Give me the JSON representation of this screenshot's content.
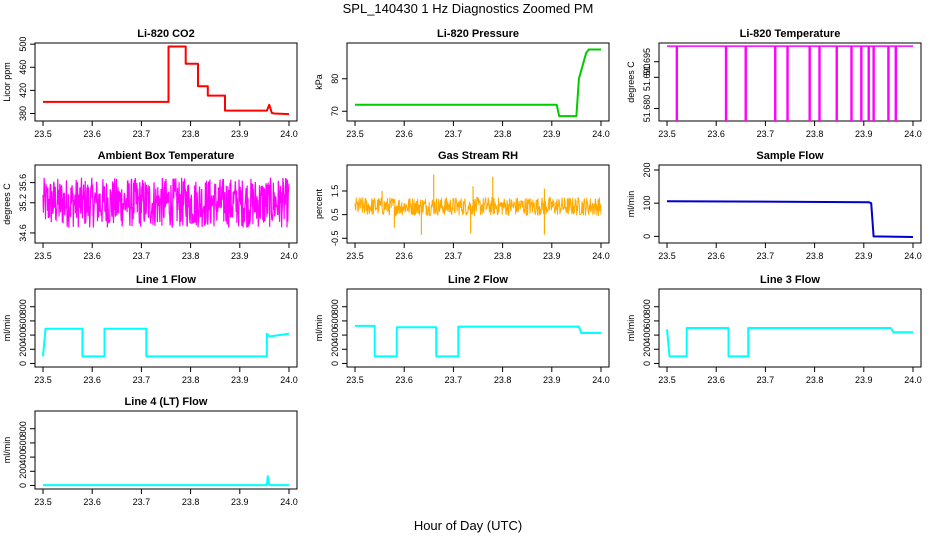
{
  "figure": {
    "title": "SPL_140430  1 Hz Diagnostics Zoomed PM",
    "xlabel": "Hour of Day (UTC)"
  },
  "chart_data": [
    {
      "type": "line",
      "title": "Li-820 CO2",
      "ylabel": "Licor ppm",
      "color": "#ff0000",
      "xlim": [
        23.5,
        24.0
      ],
      "ylim": [
        367,
        502
      ],
      "xticks": [
        "23.5",
        "23.6",
        "23.7",
        "23.8",
        "23.9",
        "24.0"
      ],
      "yticks": [
        "380",
        "420",
        "460",
        "500"
      ],
      "x": [
        23.5,
        23.755,
        23.755,
        23.79,
        23.79,
        23.815,
        23.815,
        23.835,
        23.835,
        23.87,
        23.87,
        23.955,
        23.96,
        23.965,
        23.97,
        24.0
      ],
      "y": [
        400,
        400,
        496,
        496,
        466,
        466,
        427,
        427,
        411,
        411,
        385,
        385,
        395,
        381,
        380,
        379
      ]
    },
    {
      "type": "line",
      "title": "Li-820 Pressure",
      "ylabel": "kPa",
      "color": "#00cc00",
      "xlim": [
        23.5,
        24.0
      ],
      "ylim": [
        67,
        91
      ],
      "xticks": [
        "23.5",
        "23.6",
        "23.7",
        "23.8",
        "23.9",
        "24.0"
      ],
      "yticks": [
        "70",
        "80"
      ],
      "x": [
        23.5,
        23.91,
        23.915,
        23.95,
        23.955,
        23.97,
        23.975,
        24.0
      ],
      "y": [
        72,
        72,
        68.5,
        68.5,
        80,
        88,
        89,
        89
      ]
    },
    {
      "type": "line",
      "title": "Li-820 Temperature",
      "ylabel": "degrees C",
      "color": "#ff00ff",
      "xlim": [
        23.5,
        24.0
      ],
      "ylim": [
        51.676,
        51.701
      ],
      "xticks": [
        "23.5",
        "23.6",
        "23.7",
        "23.8",
        "23.9",
        "24.0"
      ],
      "yticks": [
        "51.680",
        "51.690",
        "51.695"
      ],
      "baseline": 51.7,
      "dips": [
        23.52,
        23.62,
        23.66,
        23.72,
        23.745,
        23.79,
        23.81,
        23.845,
        23.875,
        23.895,
        23.91,
        23.92,
        23.95,
        23.965
      ]
    },
    {
      "type": "line",
      "title": "Ambient Box Temperature",
      "ylabel": "degrees C",
      "color": "#ff00ff",
      "xlim": [
        23.5,
        24.0
      ],
      "ylim": [
        34.4,
        35.95
      ],
      "xticks": [
        "23.5",
        "23.6",
        "23.7",
        "23.8",
        "23.9",
        "24.0"
      ],
      "yticks": [
        "34.6",
        "35.2",
        "35.6"
      ],
      "band": [
        34.7,
        35.7
      ]
    },
    {
      "type": "line",
      "title": "Gas Stream RH",
      "ylabel": "percent",
      "color": "#ffaa00",
      "xlim": [
        23.5,
        24.0
      ],
      "ylim": [
        -0.7,
        2.6
      ],
      "xticks": [
        "23.5",
        "23.6",
        "23.7",
        "23.8",
        "23.9",
        "24.0"
      ],
      "yticks": [
        "-0.5",
        "0.5",
        "1.5"
      ],
      "band": [
        0.45,
        1.25
      ],
      "spikes": [
        [
          23.66,
          2.2
        ],
        [
          23.74,
          1.7
        ],
        [
          23.78,
          2.1
        ],
        [
          23.555,
          1.5
        ],
        [
          23.885,
          1.6
        ],
        [
          23.635,
          -0.35
        ],
        [
          23.735,
          -0.3
        ],
        [
          23.885,
          -0.35
        ],
        [
          23.58,
          -0.05
        ]
      ]
    },
    {
      "type": "line",
      "title": "Sample Flow",
      "ylabel": "ml/min",
      "color": "#0000cc",
      "xlim": [
        23.5,
        24.0
      ],
      "ylim": [
        -20,
        215
      ],
      "xticks": [
        "23.5",
        "23.6",
        "23.7",
        "23.8",
        "23.9",
        "24.0"
      ],
      "yticks": [
        "0",
        "100",
        "200"
      ],
      "x": [
        23.5,
        23.91,
        23.915,
        23.92,
        24.0
      ],
      "y": [
        106,
        103,
        100,
        0,
        -2
      ]
    },
    {
      "type": "line",
      "title": "Line 1 Flow",
      "ylabel": "ml/min",
      "color": "#00ffff",
      "xlim": [
        23.5,
        24.0
      ],
      "ylim": [
        -50,
        1050
      ],
      "xticks": [
        "23.5",
        "23.6",
        "23.7",
        "23.8",
        "23.9",
        "24.0"
      ],
      "yticks": [
        "0",
        "200",
        "400",
        "600",
        "800"
      ],
      "x": [
        23.5,
        23.505,
        23.58,
        23.58,
        23.625,
        23.625,
        23.71,
        23.71,
        23.955,
        23.955,
        23.96,
        24.0
      ],
      "y": [
        100,
        490,
        490,
        100,
        100,
        490,
        490,
        100,
        100,
        420,
        380,
        420
      ]
    },
    {
      "type": "line",
      "title": "Line 2 Flow",
      "ylabel": "ml/min",
      "color": "#00ffff",
      "xlim": [
        23.5,
        24.0
      ],
      "ylim": [
        -50,
        1050
      ],
      "xticks": [
        "23.5",
        "23.6",
        "23.7",
        "23.8",
        "23.9",
        "24.0"
      ],
      "yticks": [
        "0",
        "200",
        "400",
        "600",
        "800"
      ],
      "x": [
        23.5,
        23.54,
        23.54,
        23.585,
        23.585,
        23.665,
        23.665,
        23.71,
        23.71,
        23.955,
        23.96,
        24.0
      ],
      "y": [
        530,
        530,
        100,
        100,
        510,
        510,
        100,
        100,
        520,
        520,
        430,
        430
      ]
    },
    {
      "type": "line",
      "title": "Line 3 Flow",
      "ylabel": "ml/min",
      "color": "#00ffff",
      "xlim": [
        23.5,
        24.0
      ],
      "ylim": [
        -50,
        1050
      ],
      "xticks": [
        "23.5",
        "23.6",
        "23.7",
        "23.8",
        "23.9",
        "24.0"
      ],
      "yticks": [
        "0",
        "200",
        "400",
        "600",
        "800"
      ],
      "x": [
        23.5,
        23.505,
        23.54,
        23.54,
        23.625,
        23.625,
        23.665,
        23.665,
        23.955,
        23.96,
        24.0
      ],
      "y": [
        480,
        100,
        100,
        500,
        500,
        100,
        100,
        500,
        500,
        440,
        440
      ]
    },
    {
      "type": "line",
      "title": "Line 4 (LT) Flow",
      "ylabel": "ml/min",
      "color": "#00ffff",
      "xlim": [
        23.5,
        24.0
      ],
      "ylim": [
        -50,
        1050
      ],
      "xticks": [
        "23.5",
        "23.6",
        "23.7",
        "23.8",
        "23.9",
        "24.0"
      ],
      "yticks": [
        "0",
        "200",
        "400",
        "600",
        "800"
      ],
      "x": [
        23.5,
        23.955,
        23.957,
        23.96,
        24.0
      ],
      "y": [
        5,
        5,
        130,
        5,
        5
      ]
    }
  ]
}
